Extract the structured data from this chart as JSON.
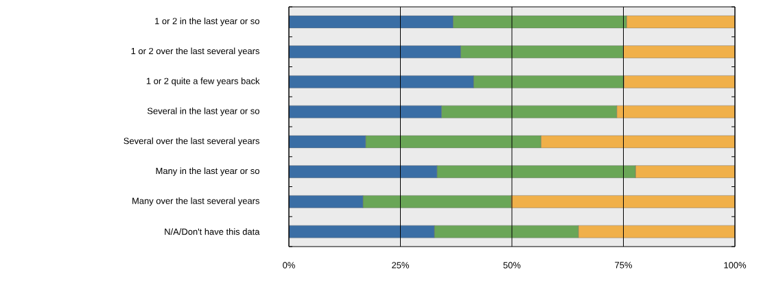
{
  "chart_data": {
    "type": "bar",
    "orientation": "horizontal",
    "stacked": true,
    "grid": "x",
    "categories": [
      "1 or 2 in the last year or so",
      "1 or 2 over the last several years",
      "1 or 2 quite a few years back",
      "Several in the last year or so",
      "Several over the last several years",
      "Many in the last year or so",
      "Many over the last several years",
      "N/A/Don't have this data"
    ],
    "series": [
      {
        "color": "#3a6ea5",
        "values": [
          36.8,
          38.5,
          41.4,
          34.2,
          17.2,
          33.2,
          16.6,
          32.6
        ]
      },
      {
        "color": "#6aa657",
        "values": [
          38.9,
          36.4,
          33.7,
          39.3,
          39.3,
          44.5,
          33.2,
          32.3
        ]
      },
      {
        "color": "#f0b04a",
        "values": [
          24.3,
          25.1,
          24.9,
          26.5,
          43.5,
          22.3,
          50.2,
          35.1
        ]
      }
    ],
    "xlim": [
      0,
      100
    ],
    "xticks": [
      {
        "value": 0,
        "label": "0%"
      },
      {
        "value": 25,
        "label": "25%"
      },
      {
        "value": 50,
        "label": "50%"
      },
      {
        "value": 75,
        "label": "75%"
      },
      {
        "value": 100,
        "label": "100%"
      }
    ]
  }
}
